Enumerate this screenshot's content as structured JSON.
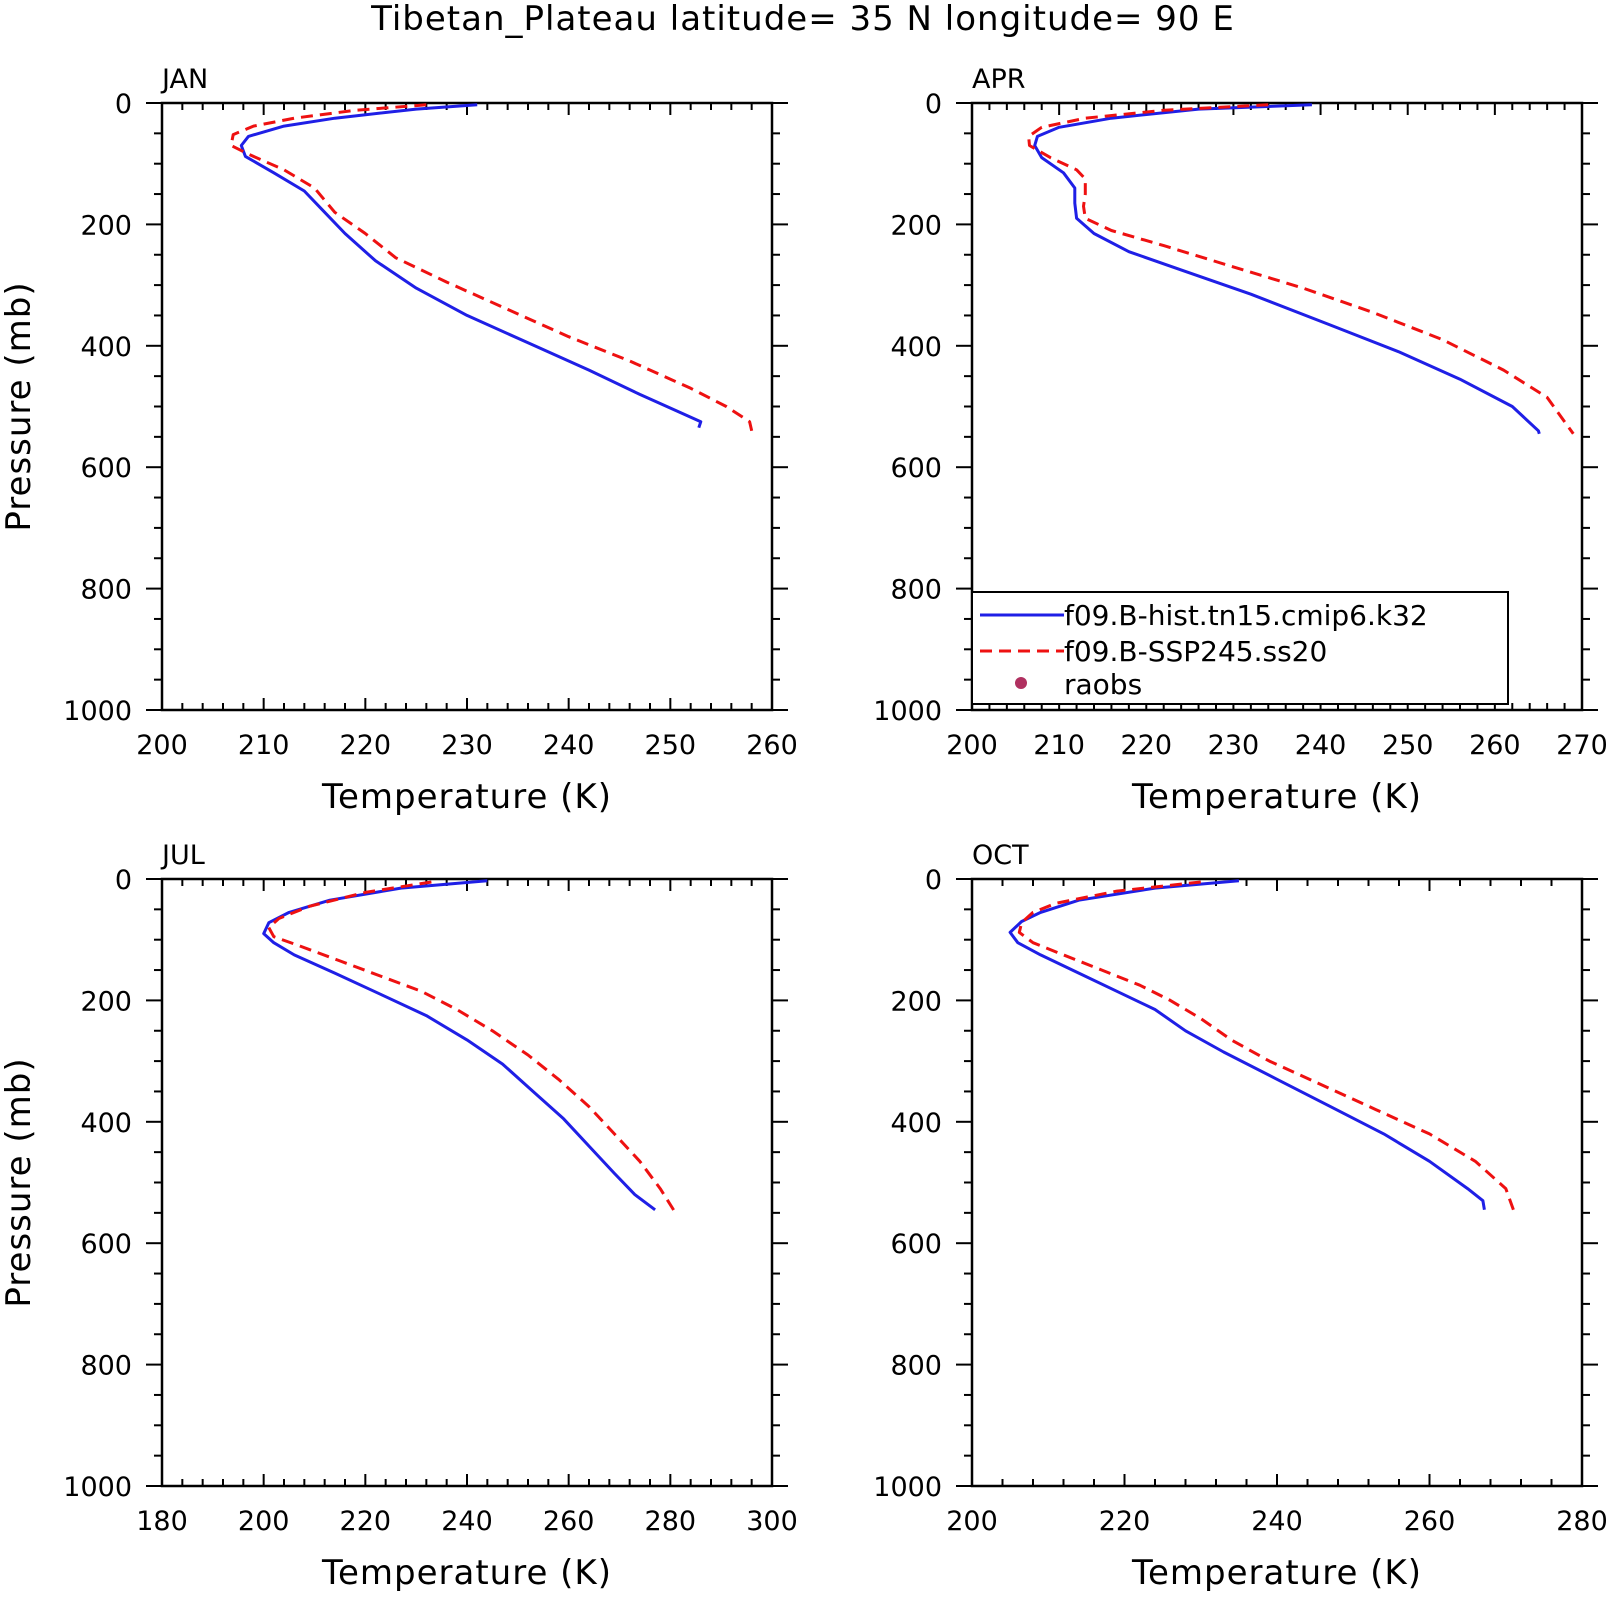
{
  "figure": {
    "title": "Tibetan_Plateau  latitude= 35 N longitude= 90 E"
  },
  "legend": {
    "entries": [
      {
        "label": "f09.B-hist.tn15.cmip6.k32",
        "color": "#1f1fe6",
        "style": "solid"
      },
      {
        "label": "f09.B-SSP245.ss20",
        "color": "#ee1111",
        "style": "dashed"
      },
      {
        "label": "raobs",
        "color": "#b03060",
        "style": "dot"
      }
    ]
  },
  "chart_data": [
    {
      "type": "line",
      "title": "JAN",
      "xlabel": "Temperature (K)",
      "ylabel": "Pressure (mb)",
      "xlim": [
        200,
        260
      ],
      "ylim": [
        1000,
        0
      ],
      "xticks": [
        200,
        210,
        220,
        230,
        240,
        250,
        260
      ],
      "yticks": [
        0,
        200,
        400,
        600,
        800,
        1000
      ],
      "series": [
        {
          "name": "f09.B-hist.tn15.cmip6.k32",
          "color": "#1f1fe6",
          "dash": false,
          "points": [
            [
              231,
              3
            ],
            [
              225,
              10
            ],
            [
              217,
              25
            ],
            [
              212,
              38
            ],
            [
              208.5,
              55
            ],
            [
              207.8,
              70
            ],
            [
              208.2,
              88
            ],
            [
              211,
              115
            ],
            [
              214,
              145
            ],
            [
              216,
              180
            ],
            [
              218,
              215
            ],
            [
              221,
              260
            ],
            [
              225,
              305
            ],
            [
              230,
              350
            ],
            [
              236,
              395
            ],
            [
              242,
              440
            ],
            [
              247,
              480
            ],
            [
              251,
              510
            ],
            [
              253,
              525
            ],
            [
              252.8,
              535
            ]
          ]
        },
        {
          "name": "f09.B-SSP245.ss20",
          "color": "#ee1111",
          "dash": true,
          "points": [
            [
              226,
              3
            ],
            [
              219,
              12
            ],
            [
              213,
              25
            ],
            [
              209,
              38
            ],
            [
              207,
              52
            ],
            [
              206.8,
              70
            ],
            [
              208.6,
              85
            ],
            [
              212,
              110
            ],
            [
              215,
              140
            ],
            [
              217,
              180
            ],
            [
              220,
              215
            ],
            [
              223,
              255
            ],
            [
              228,
              295
            ],
            [
              234,
              340
            ],
            [
              240,
              385
            ],
            [
              246,
              425
            ],
            [
              252,
              470
            ],
            [
              255.5,
              500
            ],
            [
              257.8,
              525
            ],
            [
              258,
              540
            ]
          ]
        },
        {
          "name": "raobs",
          "color": "#b03060",
          "dot": true,
          "points": []
        }
      ]
    },
    {
      "type": "line",
      "title": "APR",
      "xlabel": "Temperature (K)",
      "ylabel": "",
      "xlim": [
        200,
        270
      ],
      "ylim": [
        1000,
        0
      ],
      "xticks": [
        200,
        210,
        220,
        230,
        240,
        250,
        260,
        270
      ],
      "yticks": [
        0,
        200,
        400,
        600,
        800,
        1000
      ],
      "series": [
        {
          "name": "f09.B-hist.tn15.cmip6.k32",
          "color": "#1f1fe6",
          "dash": false,
          "points": [
            [
              239,
              3
            ],
            [
              226,
              10
            ],
            [
              216,
              25
            ],
            [
              210,
              40
            ],
            [
              207.5,
              55
            ],
            [
              207.2,
              70
            ],
            [
              208,
              90
            ],
            [
              210.5,
              115
            ],
            [
              211.8,
              140
            ],
            [
              211.8,
              165
            ],
            [
              212,
              190
            ],
            [
              214,
              215
            ],
            [
              218,
              245
            ],
            [
              224,
              275
            ],
            [
              232,
              315
            ],
            [
              241,
              365
            ],
            [
              249,
              410
            ],
            [
              256,
              455
            ],
            [
              262,
              500
            ],
            [
              265,
              540
            ],
            [
              265.1,
              545
            ]
          ]
        },
        {
          "name": "f09.B-SSP245.ss20",
          "color": "#ee1111",
          "dash": true,
          "points": [
            [
              234,
              3
            ],
            [
              222,
              12
            ],
            [
              213,
              25
            ],
            [
              208,
              40
            ],
            [
              206.5,
              55
            ],
            [
              206.6,
              70
            ],
            [
              209,
              90
            ],
            [
              212,
              110
            ],
            [
              213,
              125
            ],
            [
              213,
              150
            ],
            [
              212.8,
              170
            ],
            [
              213,
              190
            ],
            [
              216,
              210
            ],
            [
              222,
              235
            ],
            [
              230,
              270
            ],
            [
              238,
              305
            ],
            [
              246,
              345
            ],
            [
              254,
              390
            ],
            [
              261,
              440
            ],
            [
              266,
              485
            ],
            [
              269,
              545
            ]
          ]
        },
        {
          "name": "raobs",
          "color": "#b03060",
          "dot": true,
          "points": []
        }
      ]
    },
    {
      "type": "line",
      "title": "JUL",
      "xlabel": "Temperature (K)",
      "ylabel": "Pressure (mb)",
      "xlim": [
        180,
        300
      ],
      "ylim": [
        1000,
        0
      ],
      "xticks": [
        180,
        200,
        220,
        240,
        260,
        280,
        300
      ],
      "yticks": [
        0,
        200,
        400,
        600,
        800,
        1000
      ],
      "series": [
        {
          "name": "f09.B-hist.tn15.cmip6.k32",
          "color": "#1f1fe6",
          "dash": false,
          "points": [
            [
              244,
              3
            ],
            [
              227,
              15
            ],
            [
              213,
              35
            ],
            [
              205,
              55
            ],
            [
              201,
              72
            ],
            [
              200,
              90
            ],
            [
              202,
              105
            ],
            [
              206,
              125
            ],
            [
              214,
              155
            ],
            [
              223,
              190
            ],
            [
              232,
              225
            ],
            [
              240,
              265
            ],
            [
              247,
              305
            ],
            [
              253,
              350
            ],
            [
              259,
              395
            ],
            [
              264,
              440
            ],
            [
              269,
              485
            ],
            [
              273,
              520
            ],
            [
              277,
              545
            ]
          ]
        },
        {
          "name": "f09.B-SSP245.ss20",
          "color": "#ee1111",
          "dash": true,
          "points": [
            [
              233,
              5
            ],
            [
              220,
              22
            ],
            [
              209,
              45
            ],
            [
              203,
              65
            ],
            [
              201,
              80
            ],
            [
              202,
              95
            ],
            [
              207,
              110
            ],
            [
              215,
              135
            ],
            [
              223,
              160
            ],
            [
              231,
              185
            ],
            [
              238,
              215
            ],
            [
              245,
              250
            ],
            [
              252,
              290
            ],
            [
              258,
              330
            ],
            [
              264,
              375
            ],
            [
              269,
              420
            ],
            [
              274,
              465
            ],
            [
              278,
              510
            ],
            [
              281,
              550
            ]
          ]
        },
        {
          "name": "raobs",
          "color": "#b03060",
          "dot": true,
          "points": []
        }
      ]
    },
    {
      "type": "line",
      "title": "OCT",
      "xlabel": "Temperature (K)",
      "ylabel": "",
      "xlim": [
        200,
        280
      ],
      "ylim": [
        1000,
        0
      ],
      "xticks": [
        200,
        220,
        240,
        260,
        280
      ],
      "yticks": [
        0,
        200,
        400,
        600,
        800,
        1000
      ],
      "series": [
        {
          "name": "f09.B-hist.tn15.cmip6.k32",
          "color": "#1f1fe6",
          "dash": false,
          "points": [
            [
              235,
              3
            ],
            [
              224,
              15
            ],
            [
              214,
              35
            ],
            [
              209,
              55
            ],
            [
              206.5,
              70
            ],
            [
              205,
              88
            ],
            [
              206,
              105
            ],
            [
              209,
              125
            ],
            [
              214,
              155
            ],
            [
              219,
              185
            ],
            [
              224,
              215
            ],
            [
              228,
              250
            ],
            [
              233,
              285
            ],
            [
              240,
              330
            ],
            [
              247,
              375
            ],
            [
              254,
              420
            ],
            [
              260,
              465
            ],
            [
              265,
              510
            ],
            [
              267,
              530
            ],
            [
              267.2,
              545
            ]
          ]
        },
        {
          "name": "f09.B-SSP245.ss20",
          "color": "#ee1111",
          "dash": true,
          "points": [
            [
              230,
              5
            ],
            [
              219,
              20
            ],
            [
              211,
              40
            ],
            [
              208,
              55
            ],
            [
              206.5,
              72
            ],
            [
              206.2,
              88
            ],
            [
              208,
              105
            ],
            [
              212,
              125
            ],
            [
              217,
              150
            ],
            [
              222,
              175
            ],
            [
              226,
              200
            ],
            [
              230,
              230
            ],
            [
              234,
              265
            ],
            [
              239,
              300
            ],
            [
              246,
              340
            ],
            [
              253,
              380
            ],
            [
              260,
              420
            ],
            [
              266,
              465
            ],
            [
              270,
              510
            ],
            [
              271,
              545
            ]
          ]
        },
        {
          "name": "raobs",
          "color": "#b03060",
          "dot": true,
          "points": []
        }
      ]
    }
  ]
}
